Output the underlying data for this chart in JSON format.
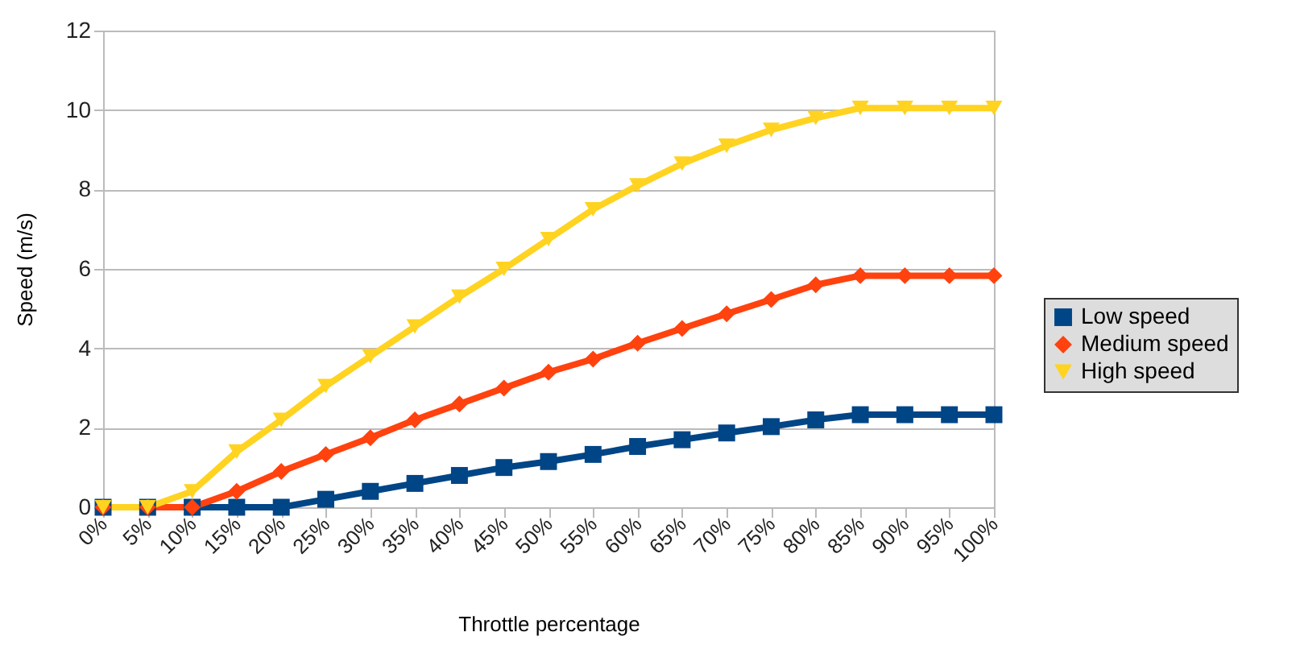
{
  "chart_data": {
    "type": "line",
    "xlabel": "Throttle percentage",
    "ylabel": "Speed (m/s)",
    "categories": [
      "0%",
      "5%",
      "10%",
      "15%",
      "20%",
      "25%",
      "30%",
      "35%",
      "40%",
      "45%",
      "50%",
      "55%",
      "60%",
      "65%",
      "70%",
      "75%",
      "80%",
      "85%",
      "90%",
      "95%",
      "100%"
    ],
    "ylim": [
      0,
      12
    ],
    "yticks": [
      0,
      2,
      4,
      6,
      8,
      10,
      12
    ],
    "grid": "y",
    "legend": "right",
    "line_style": "solid",
    "series": [
      {
        "name": "Low speed",
        "color": "#004586",
        "marker": "square",
        "values": [
          0,
          0,
          0,
          0,
          0,
          0.2,
          0.4,
          0.6,
          0.8,
          1.0,
          1.15,
          1.33,
          1.53,
          1.7,
          1.87,
          2.03,
          2.2,
          2.33,
          2.33,
          2.33,
          2.33
        ]
      },
      {
        "name": "Medium speed",
        "color": "#ff420e",
        "marker": "diamond",
        "values": [
          0,
          0,
          0,
          0.4,
          0.9,
          1.33,
          1.75,
          2.2,
          2.6,
          3.0,
          3.4,
          3.73,
          4.13,
          4.5,
          4.87,
          5.23,
          5.6,
          5.83,
          5.83,
          5.83,
          5.83
        ]
      },
      {
        "name": "High speed",
        "color": "#ffd320",
        "marker": "triangle",
        "values": [
          0,
          0,
          0.4,
          1.4,
          2.2,
          3.05,
          3.8,
          4.55,
          5.3,
          6.0,
          6.75,
          7.5,
          8.1,
          8.65,
          9.1,
          9.5,
          9.8,
          10.05,
          10.05,
          10.05,
          10.05
        ]
      }
    ]
  }
}
